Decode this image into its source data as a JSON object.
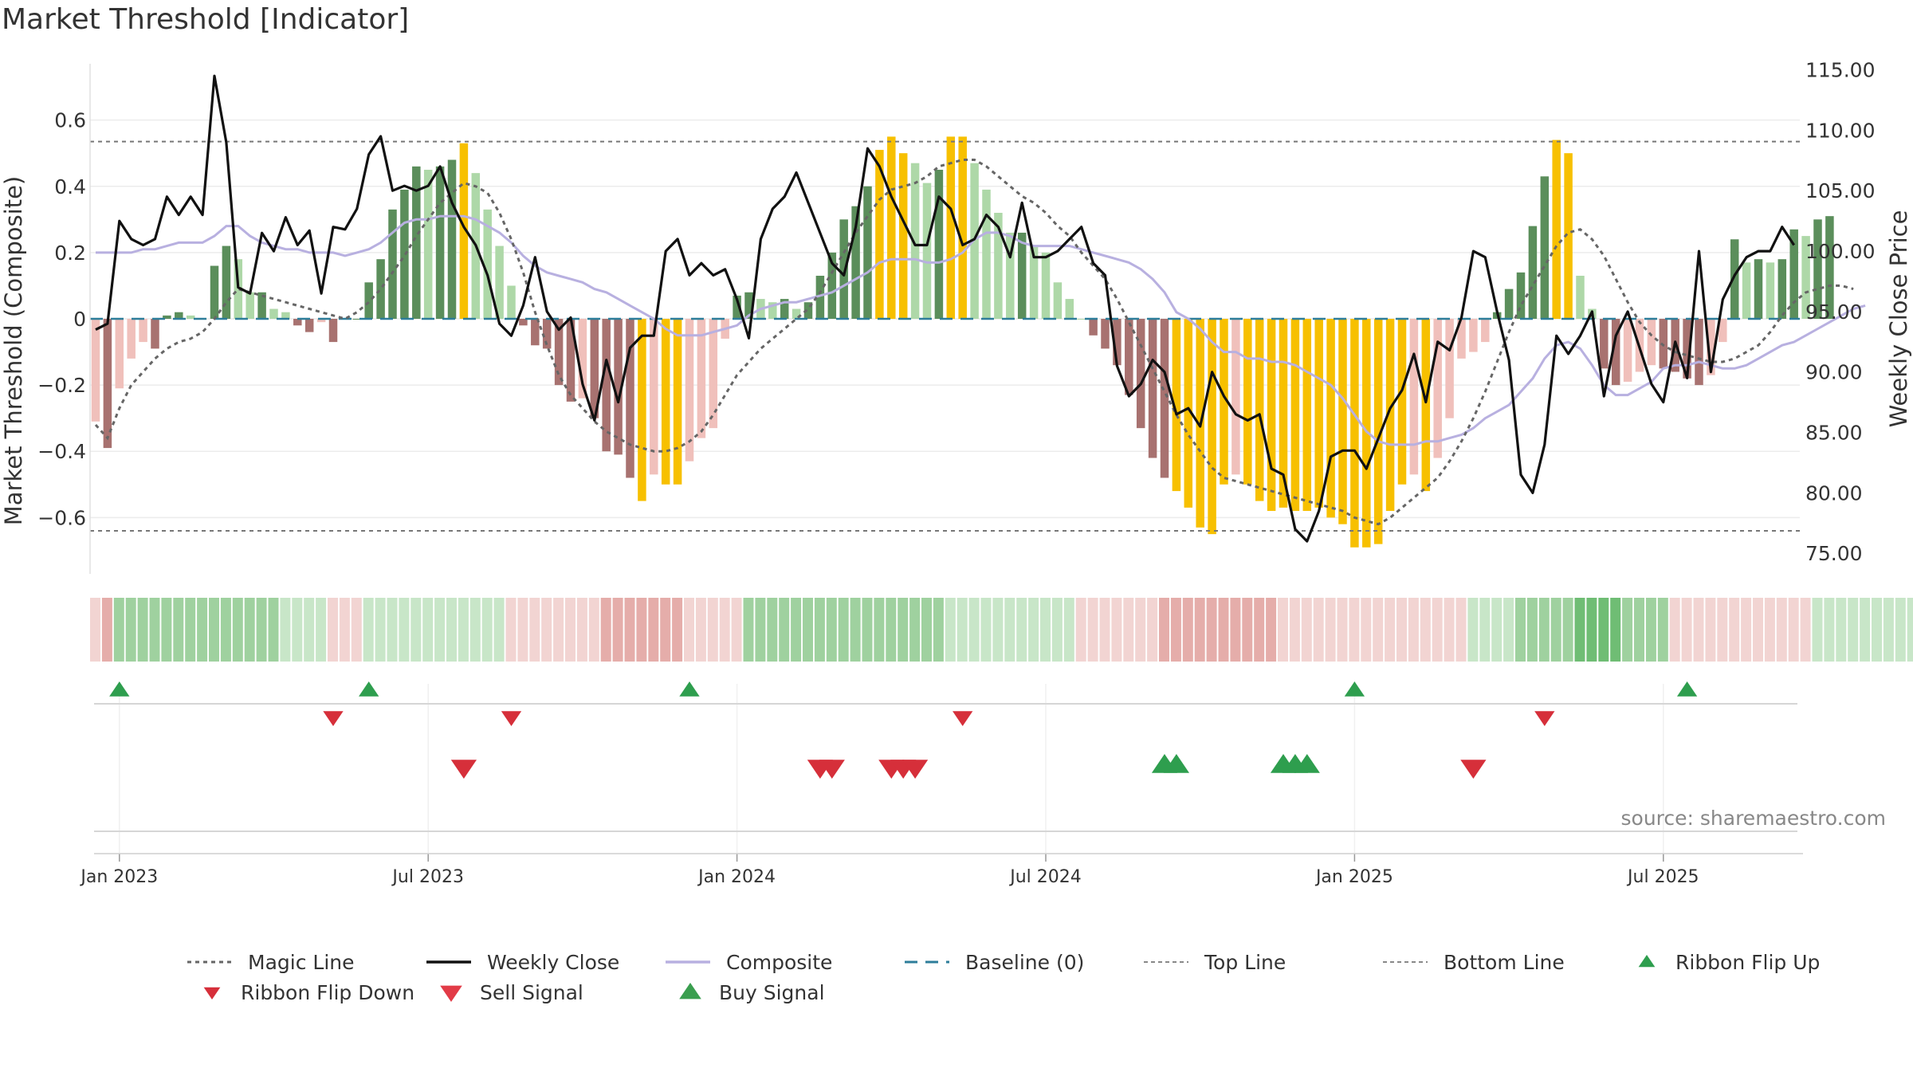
{
  "chart_data": {
    "type": "bar",
    "title": "Market Threshold [Indicator]",
    "ylabel_left": "Market Threshold (Composite)",
    "ylabel_right": "Weekly Close Price",
    "source": "source: sharemaestro.com",
    "ylim_left": [
      -0.77,
      0.77
    ],
    "ylim_right": [
      73.3,
      115.5
    ],
    "left_ticks": [
      {
        "v": 0.6,
        "label": "0.6"
      },
      {
        "v": 0.4,
        "label": "0.4"
      },
      {
        "v": 0.2,
        "label": "0.2"
      },
      {
        "v": 0,
        "label": "0"
      },
      {
        "v": -0.2,
        "label": "−0.2"
      },
      {
        "v": -0.4,
        "label": "−0.4"
      },
      {
        "v": -0.6,
        "label": "−0.6"
      }
    ],
    "right_ticks": [
      {
        "v": 115,
        "label": "115.00"
      },
      {
        "v": 110,
        "label": "110.00"
      },
      {
        "v": 105,
        "label": "105.00"
      },
      {
        "v": 100,
        "label": "100.00"
      },
      {
        "v": 95,
        "label": "95.00"
      },
      {
        "v": 90,
        "label": "90.00"
      },
      {
        "v": 85,
        "label": "85.00"
      },
      {
        "v": 80,
        "label": "80.00"
      },
      {
        "v": 75,
        "label": "75.00"
      }
    ],
    "x_ticks": [
      {
        "week": 2,
        "label": "Jan 2023"
      },
      {
        "week": 28,
        "label": "Jul 2023"
      },
      {
        "week": 54,
        "label": "Jan 2024"
      },
      {
        "week": 80,
        "label": "Jul 2024"
      },
      {
        "week": 106,
        "label": "Jan 2025"
      },
      {
        "week": 132,
        "label": "Jul 2025"
      }
    ],
    "top_line": 0.535,
    "bottom_line": -0.64,
    "composite_bars": [
      -0.31,
      -0.39,
      -0.21,
      -0.12,
      -0.07,
      -0.09,
      0.01,
      0.02,
      0.01,
      0,
      0.16,
      0.22,
      0.18,
      0.08,
      0.08,
      0.03,
      0.02,
      -0.02,
      -0.04,
      -0.01,
      -0.07,
      0,
      0,
      0.11,
      0.18,
      0.33,
      0.39,
      0.46,
      0.45,
      0.46,
      0.48,
      0.53,
      0.44,
      0.33,
      0.22,
      0.1,
      -0.02,
      -0.08,
      -0.09,
      -0.2,
      -0.25,
      -0.24,
      -0.3,
      -0.4,
      -0.41,
      -0.48,
      -0.55,
      -0.47,
      -0.5,
      -0.5,
      -0.43,
      -0.36,
      -0.33,
      -0.06,
      0.07,
      0.08,
      0.06,
      0.05,
      0.06,
      0.03,
      0.05,
      0.13,
      0.2,
      0.3,
      0.34,
      0.4,
      0.51,
      0.55,
      0.5,
      0.47,
      0.41,
      0.45,
      0.55,
      0.55,
      0.47,
      0.39,
      0.32,
      0.26,
      0.26,
      0.22,
      0.2,
      0.11,
      0.06,
      0,
      -0.05,
      -0.09,
      -0.14,
      -0.23,
      -0.33,
      -0.42,
      -0.48,
      -0.52,
      -0.57,
      -0.63,
      -0.65,
      -0.5,
      -0.47,
      -0.5,
      -0.55,
      -0.58,
      -0.57,
      -0.58,
      -0.58,
      -0.57,
      -0.6,
      -0.62,
      -0.69,
      -0.69,
      -0.68,
      -0.58,
      -0.5,
      -0.47,
      -0.52,
      -0.42,
      -0.3,
      -0.12,
      -0.1,
      -0.07,
      0.02,
      0.09,
      0.14,
      0.28,
      0.43,
      0.54,
      0.5,
      0.13,
      0.03,
      -0.15,
      -0.2,
      -0.19,
      -0.16,
      -0.14,
      -0.15,
      -0.16,
      -0.18,
      -0.2,
      -0.17,
      -0.07,
      0.24,
      0.17,
      0.18,
      0.17,
      0.18,
      0.27,
      0.25,
      0.3,
      0.31
    ],
    "magic_line": [
      -0.32,
      -0.36,
      -0.27,
      -0.2,
      -0.16,
      -0.12,
      -0.09,
      -0.07,
      -0.06,
      -0.04,
      0,
      0.05,
      0.09,
      0.08,
      0.07,
      0.06,
      0.05,
      0.04,
      0.03,
      0.02,
      0.01,
      0,
      0.02,
      0.05,
      0.09,
      0.14,
      0.19,
      0.25,
      0.3,
      0.35,
      0.38,
      0.41,
      0.4,
      0.38,
      0.32,
      0.24,
      0.14,
      0.02,
      -0.08,
      -0.17,
      -0.23,
      -0.27,
      -0.31,
      -0.34,
      -0.36,
      -0.38,
      -0.39,
      -0.4,
      -0.4,
      -0.39,
      -0.37,
      -0.34,
      -0.29,
      -0.23,
      -0.17,
      -0.13,
      -0.09,
      -0.06,
      -0.03,
      0,
      0.03,
      0.08,
      0.14,
      0.2,
      0.26,
      0.31,
      0.36,
      0.39,
      0.4,
      0.41,
      0.43,
      0.46,
      0.47,
      0.48,
      0.48,
      0.46,
      0.43,
      0.4,
      0.37,
      0.35,
      0.32,
      0.28,
      0.25,
      0.2,
      0.16,
      0.12,
      0.06,
      -0.01,
      -0.08,
      -0.15,
      -0.22,
      -0.29,
      -0.35,
      -0.4,
      -0.45,
      -0.48,
      -0.49,
      -0.5,
      -0.51,
      -0.52,
      -0.53,
      -0.54,
      -0.55,
      -0.56,
      -0.57,
      -0.58,
      -0.6,
      -0.61,
      -0.62,
      -0.6,
      -0.57,
      -0.54,
      -0.51,
      -0.48,
      -0.43,
      -0.37,
      -0.3,
      -0.22,
      -0.13,
      -0.04,
      0.04,
      0.1,
      0.16,
      0.22,
      0.26,
      0.27,
      0.24,
      0.19,
      0.12,
      0.05,
      -0.01,
      -0.05,
      -0.08,
      -0.1,
      -0.11,
      -0.12,
      -0.13,
      -0.13,
      -0.12,
      -0.1,
      -0.08,
      -0.04,
      0.01,
      0.05,
      0.08,
      0.09,
      0.1,
      0.1,
      0.09
    ],
    "composite_line": [
      0.2,
      0.2,
      0.2,
      0.2,
      0.21,
      0.21,
      0.22,
      0.23,
      0.23,
      0.23,
      0.25,
      0.28,
      0.28,
      0.25,
      0.23,
      0.22,
      0.21,
      0.21,
      0.2,
      0.2,
      0.2,
      0.19,
      0.2,
      0.21,
      0.23,
      0.26,
      0.29,
      0.3,
      0.3,
      0.31,
      0.31,
      0.31,
      0.3,
      0.28,
      0.26,
      0.23,
      0.19,
      0.16,
      0.14,
      0.13,
      0.12,
      0.11,
      0.09,
      0.08,
      0.06,
      0.04,
      0.02,
      0,
      -0.03,
      -0.05,
      -0.05,
      -0.05,
      -0.04,
      -0.03,
      -0.02,
      0.01,
      0.03,
      0.04,
      0.05,
      0.05,
      0.06,
      0.07,
      0.08,
      0.1,
      0.12,
      0.14,
      0.17,
      0.18,
      0.18,
      0.18,
      0.17,
      0.17,
      0.18,
      0.2,
      0.24,
      0.26,
      0.26,
      0.25,
      0.23,
      0.22,
      0.22,
      0.22,
      0.22,
      0.21,
      0.2,
      0.19,
      0.18,
      0.17,
      0.15,
      0.12,
      0.08,
      0.02,
      0,
      -0.03,
      -0.07,
      -0.1,
      -0.1,
      -0.12,
      -0.12,
      -0.13,
      -0.13,
      -0.14,
      -0.16,
      -0.18,
      -0.2,
      -0.24,
      -0.29,
      -0.34,
      -0.37,
      -0.38,
      -0.38,
      -0.38,
      -0.37,
      -0.37,
      -0.36,
      -0.35,
      -0.33,
      -0.3,
      -0.28,
      -0.26,
      -0.22,
      -0.18,
      -0.12,
      -0.08,
      -0.07,
      -0.09,
      -0.14,
      -0.2,
      -0.23,
      -0.23,
      -0.21,
      -0.19,
      -0.15,
      -0.14,
      -0.14,
      -0.13,
      -0.14,
      -0.15,
      -0.15,
      -0.14,
      -0.12,
      -0.1,
      -0.08,
      -0.07,
      -0.05,
      -0.03,
      -0.01,
      0.01,
      0.03,
      0.04
    ],
    "weekly_close": [
      93.5,
      94,
      102.5,
      101,
      100.5,
      101,
      104.5,
      103,
      104.5,
      103,
      114.5,
      109,
      97,
      96.5,
      101.5,
      100,
      102.8,
      100.5,
      101.7,
      96.5,
      102,
      101.8,
      103.5,
      108,
      109.5,
      105,
      105.4,
      105,
      105.4,
      107,
      104,
      102,
      100.5,
      98,
      94,
      93,
      95.5,
      99.5,
      95,
      93.5,
      94.5,
      89,
      86,
      91,
      87.5,
      92,
      93,
      93,
      100,
      101,
      98,
      99,
      98,
      98.5,
      96,
      92.8,
      101,
      103.5,
      104.5,
      106.5,
      104,
      101.5,
      99,
      98,
      102,
      108.5,
      107,
      104.5,
      102.5,
      100.5,
      100.5,
      104.5,
      103.5,
      100.5,
      101,
      103,
      102,
      99.5,
      104,
      99.5,
      99.5,
      100,
      101,
      102,
      99,
      98,
      90.5,
      88,
      89,
      91,
      90,
      86.5,
      87,
      85.5,
      90,
      88,
      86.5,
      86,
      86.5,
      82,
      81.5,
      77,
      76,
      78.5,
      83,
      83.5,
      83.5,
      82,
      84.5,
      87,
      88.5,
      91.5,
      87.5,
      92.5,
      91.8,
      94.5,
      100,
      99.5,
      95,
      91,
      81.5,
      80,
      84,
      93,
      91.5,
      93,
      95,
      88,
      93,
      95,
      92,
      89,
      87.5,
      92.5,
      89.5,
      100,
      90,
      96,
      98,
      99.5,
      100,
      100,
      102,
      100.5
    ],
    "ribbon": [
      -1,
      -2,
      2,
      2,
      2,
      2,
      2,
      2,
      2,
      2,
      2,
      2,
      2,
      2,
      2,
      2,
      1,
      1,
      1,
      1,
      -1,
      -1,
      -1,
      1,
      1,
      1,
      1,
      1,
      1,
      1,
      1,
      1,
      1,
      1,
      1,
      -1,
      -1,
      -1,
      -1,
      -1,
      -1,
      -1,
      -1,
      -2,
      -2,
      -2,
      -2,
      -2,
      -2,
      -2,
      -1,
      -1,
      -1,
      -1,
      -1,
      2,
      2,
      2,
      2,
      2,
      2,
      2,
      2,
      2,
      2,
      2,
      2,
      2,
      2,
      2,
      2,
      2,
      1,
      1,
      1,
      1,
      1,
      1,
      1,
      1,
      1,
      1,
      1,
      -1,
      -1,
      -1,
      -1,
      -1,
      -1,
      -1,
      -2,
      -2,
      -2,
      -2,
      -2,
      -2,
      -2,
      -2,
      -2,
      -2,
      -1,
      -1,
      -1,
      -1,
      -1,
      -1,
      -1,
      -1,
      -1,
      -1,
      -1,
      -1,
      -1,
      -1,
      -1,
      -1,
      1,
      1,
      1,
      1,
      2,
      2,
      2,
      2,
      2,
      3,
      3,
      3,
      3,
      2,
      2,
      2,
      2,
      -1,
      -1,
      -1,
      -1,
      -1,
      -1,
      -1,
      -1,
      -1,
      -1,
      -1,
      -1,
      1,
      1,
      1,
      1,
      1,
      1,
      1,
      1,
      1,
      1
    ],
    "ribbon_flip_up_weeks": [
      2,
      23,
      50,
      106,
      134
    ],
    "ribbon_flip_down_weeks": [
      20,
      35,
      73,
      122
    ],
    "buy_signal_weeks": [
      90,
      91,
      100,
      101,
      102
    ],
    "sell_signal_weeks": [
      31,
      61,
      62,
      67,
      68,
      69,
      116
    ],
    "colors": {
      "bar_pos_strong": "#5b8e5b",
      "bar_pos_light": "#aed8a8",
      "bar_neg_strong": "#a87270",
      "bar_neg_light": "#f0c0bb",
      "bar_extreme": "#f7c000",
      "ribbon_up": "#4caf50",
      "ribbon_down": "#d07070",
      "signal_up": "#2e9e4e",
      "signal_down": "#d62f3a",
      "magic": "#666666",
      "close": "#111111",
      "composite": "#b8b0e0",
      "baseline": "#2d7d9a",
      "threshold": "#777777"
    },
    "legend": [
      {
        "key": "magic",
        "label": "Magic Line"
      },
      {
        "key": "close",
        "label": "Weekly Close"
      },
      {
        "key": "composite",
        "label": "Composite"
      },
      {
        "key": "baseline",
        "label": "Baseline (0)"
      },
      {
        "key": "top",
        "label": "Top Line"
      },
      {
        "key": "bottom",
        "label": "Bottom Line"
      },
      {
        "key": "flipup",
        "label": "Ribbon Flip Up"
      },
      {
        "key": "flipdown",
        "label": "Ribbon Flip Down"
      },
      {
        "key": "sell",
        "label": "Sell Signal"
      },
      {
        "key": "buy",
        "label": "Buy Signal"
      }
    ]
  }
}
